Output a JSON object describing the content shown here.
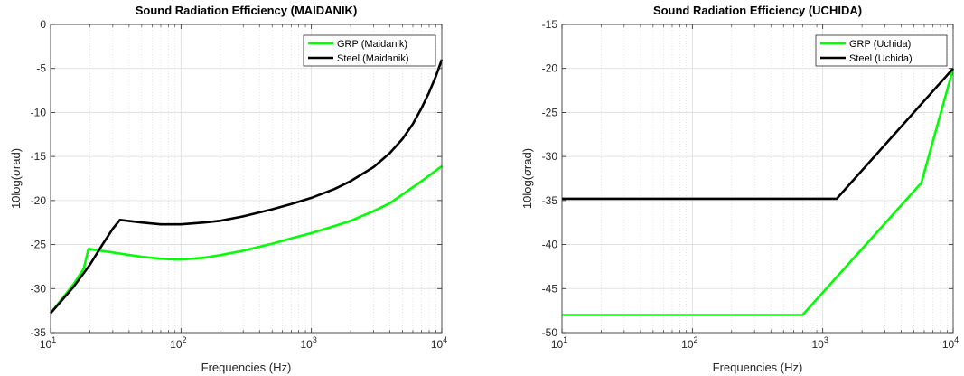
{
  "chart_data": [
    {
      "type": "line",
      "title": "Sound Radiation Efficiency (MAIDANIK)",
      "xlabel": "Frequencies (Hz)",
      "ylabel_prefix": "10log(",
      "ylabel_symbol": "σ",
      "ylabel_suffix": "rad)",
      "xscale": "log",
      "xlim": [
        10,
        10000
      ],
      "ylim": [
        -35,
        0
      ],
      "xticks": [
        10,
        100,
        1000,
        10000
      ],
      "xtick_base": "10",
      "xtick_exponents": [
        "1",
        "2",
        "3",
        "4"
      ],
      "yticks": [
        0,
        -5,
        -10,
        -15,
        -20,
        -25,
        -30,
        -35
      ],
      "ytick_labels": [
        "0",
        "-5",
        "-10",
        "-15",
        "-20",
        "-25",
        "-30",
        "-35"
      ],
      "grid": true,
      "legend_position": "top-right",
      "series": [
        {
          "name": "GRP (Maidanik)",
          "color": "#00ff00",
          "x": [
            10,
            15,
            18,
            19.5,
            30,
            50,
            70,
            90,
            100,
            150,
            200,
            300,
            500,
            700,
            1000,
            1500,
            2000,
            3000,
            4000,
            5000,
            7000,
            10000
          ],
          "y": [
            -32.8,
            -29.5,
            -27.7,
            -25.5,
            -25.9,
            -26.4,
            -26.6,
            -26.7,
            -26.7,
            -26.5,
            -26.2,
            -25.7,
            -24.9,
            -24.3,
            -23.7,
            -22.9,
            -22.3,
            -21.2,
            -20.3,
            -19.3,
            -17.8,
            -16.1
          ]
        },
        {
          "name": "Steel (Maidanik)",
          "color": "#000000",
          "x": [
            10,
            15,
            20,
            25,
            30,
            34,
            50,
            70,
            90,
            100,
            150,
            200,
            300,
            500,
            700,
            1000,
            1500,
            2000,
            3000,
            4000,
            5000,
            6000,
            7000,
            8000,
            9000,
            10000
          ],
          "y": [
            -32.8,
            -29.8,
            -27.3,
            -25.0,
            -23.2,
            -22.2,
            -22.5,
            -22.7,
            -22.7,
            -22.7,
            -22.5,
            -22.3,
            -21.8,
            -21.0,
            -20.4,
            -19.7,
            -18.7,
            -17.8,
            -16.2,
            -14.6,
            -13.0,
            -11.3,
            -9.5,
            -7.7,
            -5.9,
            -4.0
          ]
        }
      ]
    },
    {
      "type": "line",
      "title": "Sound Radiation Efficiency (UCHIDA)",
      "xlabel": "Frequencies (Hz)",
      "ylabel_prefix": "10log(",
      "ylabel_symbol": "σ",
      "ylabel_suffix": "rad)",
      "xscale": "log",
      "xlim": [
        10,
        10000
      ],
      "ylim": [
        -50,
        -15
      ],
      "xticks": [
        10,
        100,
        1000,
        10000
      ],
      "xtick_base": "10",
      "xtick_exponents": [
        "1",
        "2",
        "3",
        "4"
      ],
      "yticks": [
        -15,
        -20,
        -25,
        -30,
        -35,
        -40,
        -45,
        -50
      ],
      "ytick_labels": [
        "-15",
        "-20",
        "-25",
        "-30",
        "-35",
        "-40",
        "-45",
        "-50"
      ],
      "grid": true,
      "legend_position": "top-right",
      "series": [
        {
          "name": "GRP (Uchida)",
          "color": "#00ff00",
          "x": [
            10,
            700,
            5700,
            10000
          ],
          "y": [
            -48.0,
            -48.0,
            -33.0,
            -20.0
          ]
        },
        {
          "name": "Steel (Uchida)",
          "color": "#000000",
          "x": [
            10,
            1280,
            10000
          ],
          "y": [
            -34.8,
            -34.8,
            -20.0
          ]
        }
      ]
    }
  ]
}
